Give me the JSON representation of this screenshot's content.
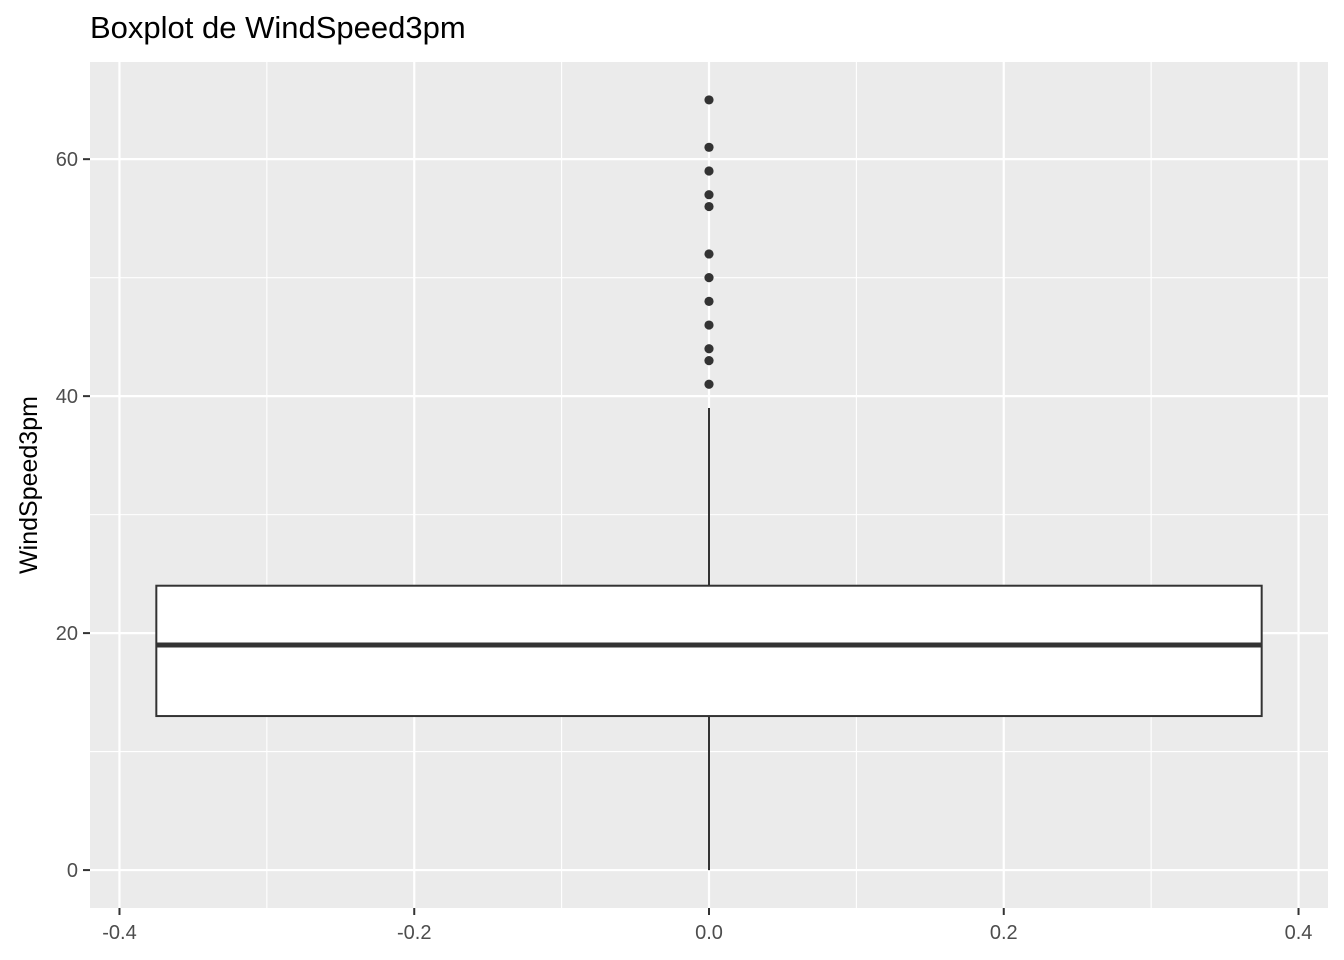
{
  "chart_data": {
    "type": "boxplot",
    "title": "Boxplot de WindSpeed3pm",
    "xlabel": "",
    "ylabel": "WindSpeed3pm",
    "xlim": [
      -0.42,
      0.42
    ],
    "ylim": [
      -3.2,
      68.2
    ],
    "x_ticks": [
      -0.4,
      -0.2,
      0.0,
      0.2,
      0.4
    ],
    "x_tick_labels": [
      "-0.4",
      "-0.2",
      "0.0",
      "0.2",
      "0.4"
    ],
    "y_ticks": [
      0,
      20,
      40,
      60
    ],
    "y_tick_labels": [
      "0",
      "20",
      "40",
      "60"
    ],
    "grid": true,
    "box": {
      "x_center": 0.0,
      "x_left": -0.375,
      "x_right": 0.375,
      "whisker_low": 0,
      "q1": 13,
      "median": 19,
      "q3": 24,
      "whisker_high": 39
    },
    "outliers": [
      41,
      43,
      44,
      46,
      48,
      50,
      52,
      56,
      57,
      59,
      61,
      65
    ],
    "colors": {
      "panel_background": "#ebebeb",
      "grid_major": "#ffffff",
      "box_fill": "#ffffff",
      "box_line": "#333333",
      "outlier": "#333333"
    }
  }
}
